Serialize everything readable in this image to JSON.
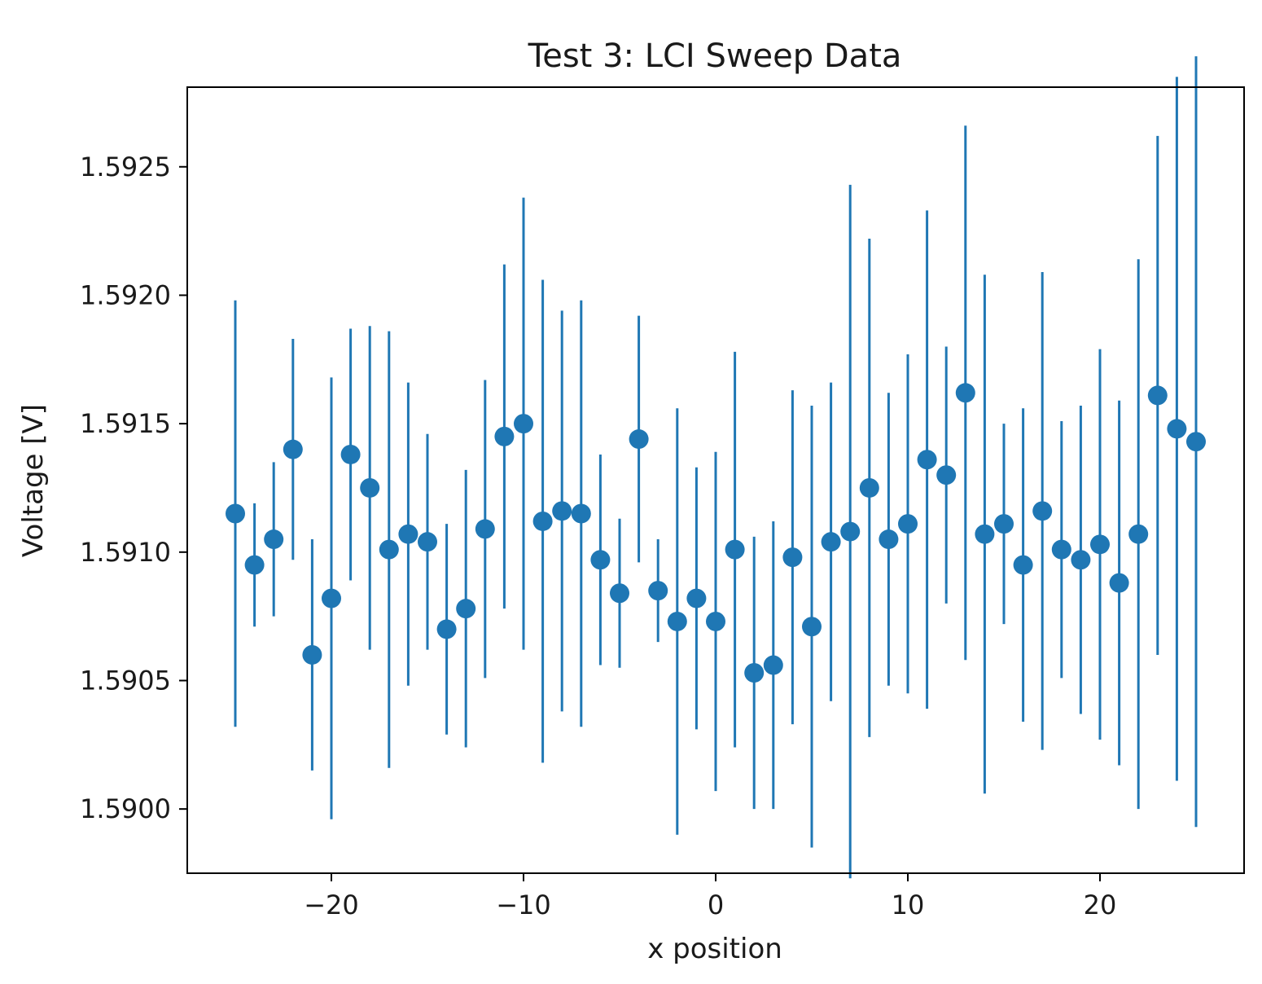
{
  "chart_data": {
    "type": "scatter",
    "title": "Test 3: LCI Sweep Data",
    "xlabel": "x position",
    "ylabel": "Voltage [V]",
    "xlim": [
      -27.5,
      27.5
    ],
    "ylim": [
      1.58975,
      1.59281
    ],
    "xticks": [
      -20,
      -10,
      0,
      10,
      20
    ],
    "xtick_labels": [
      "−20",
      "−10",
      "0",
      "10",
      "20"
    ],
    "yticks": [
      1.59,
      1.5905,
      1.591,
      1.5915,
      1.592,
      1.5925
    ],
    "ytick_labels": [
      "1.5900",
      "1.5905",
      "1.5910",
      "1.5915",
      "1.5920",
      "1.5925"
    ],
    "grid": false,
    "color": "#1f77b4",
    "x": [
      -25,
      -24,
      -23,
      -22,
      -21,
      -20,
      -19,
      -18,
      -17,
      -16,
      -15,
      -14,
      -13,
      -12,
      -11,
      -10,
      -9,
      -8,
      -7,
      -6,
      -5,
      -4,
      -3,
      -2,
      -1,
      0,
      1,
      2,
      3,
      4,
      5,
      6,
      7,
      8,
      9,
      10,
      11,
      12,
      13,
      14,
      15,
      16,
      17,
      18,
      19,
      20,
      21,
      22,
      23,
      24,
      25
    ],
    "y": [
      1.59115,
      1.59095,
      1.59105,
      1.5914,
      1.5906,
      1.59082,
      1.59138,
      1.59125,
      1.59101,
      1.59107,
      1.59104,
      1.5907,
      1.59078,
      1.59109,
      1.59145,
      1.5915,
      1.59112,
      1.59116,
      1.59115,
      1.59097,
      1.59084,
      1.59144,
      1.59085,
      1.59073,
      1.59082,
      1.59073,
      1.59101,
      1.59053,
      1.59056,
      1.59098,
      1.59071,
      1.59104,
      1.59108,
      1.59125,
      1.59105,
      1.59111,
      1.59136,
      1.5913,
      1.59162,
      1.59107,
      1.59111,
      1.59095,
      1.59116,
      1.59101,
      1.59097,
      1.59103,
      1.59088,
      1.59107,
      1.59161,
      1.59148,
      1.59143
    ],
    "yerr": [
      0.00083,
      0.00024,
      0.0003,
      0.00043,
      0.00045,
      0.00086,
      0.00049,
      0.00063,
      0.00085,
      0.00059,
      0.00042,
      0.00041,
      0.00054,
      0.00058,
      0.00067,
      0.00088,
      0.00094,
      0.00078,
      0.00083,
      0.00041,
      0.00029,
      0.00048,
      0.0002,
      0.00083,
      0.00051,
      0.00066,
      0.00077,
      0.00053,
      0.00056,
      0.00065,
      0.00086,
      0.00062,
      0.00135,
      0.00097,
      0.00057,
      0.00066,
      0.00097,
      0.0005,
      0.00104,
      0.00101,
      0.00039,
      0.00061,
      0.00093,
      0.0005,
      0.0006,
      0.00076,
      0.00071,
      0.00107,
      0.00101,
      0.00137,
      0.0015
    ]
  }
}
